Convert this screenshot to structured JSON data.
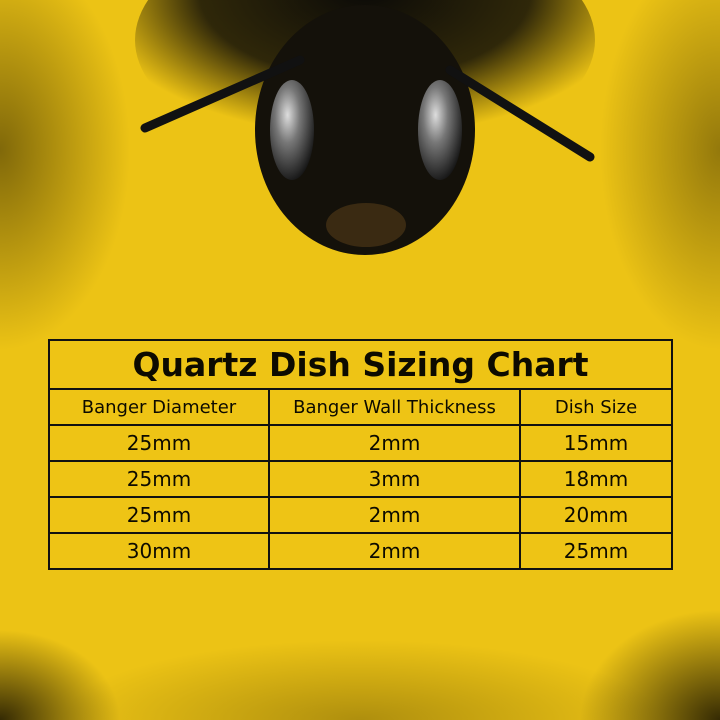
{
  "chart_data": {
    "type": "table",
    "title": "Quartz Dish Sizing Chart",
    "columns": [
      "Banger Diameter",
      "Banger Wall Thickness",
      "Dish Size"
    ],
    "rows": [
      [
        "25mm",
        "2mm",
        "15mm"
      ],
      [
        "25mm",
        "3mm",
        "18mm"
      ],
      [
        "25mm",
        "2mm",
        "20mm"
      ],
      [
        "30mm",
        "2mm",
        "25mm"
      ]
    ]
  },
  "colors": {
    "background": "#ecc315",
    "text": "#0d0b00"
  }
}
